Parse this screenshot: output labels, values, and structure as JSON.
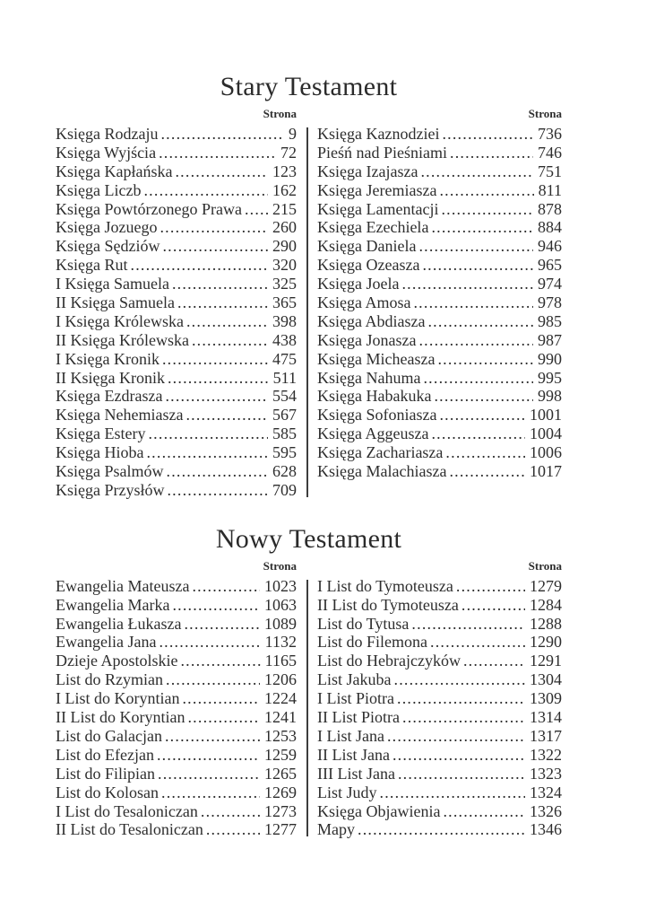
{
  "labels": {
    "column_header": "Strona"
  },
  "colors": {
    "text": "#2e2e2e",
    "divider": "#3d3d3d",
    "background": "#ffffff"
  },
  "sections": [
    {
      "id": "stary-testament",
      "title": "Stary Testament",
      "columns": {
        "left": [
          {
            "book": "Księga Rodzaju",
            "page": "9"
          },
          {
            "book": "Księga Wyjścia",
            "page": "72"
          },
          {
            "book": "Księga Kapłańska",
            "page": "123"
          },
          {
            "book": "Księga Liczb",
            "page": "162"
          },
          {
            "book": "Księga Powtórzonego Prawa",
            "page": "215"
          },
          {
            "book": "Księga Jozuego",
            "page": "260"
          },
          {
            "book": "Księga Sędziów",
            "page": "290"
          },
          {
            "book": "Księga Rut",
            "page": "320"
          },
          {
            "book": "I Księga Samuela",
            "page": "325"
          },
          {
            "book": "II Księga Samuela",
            "page": "365"
          },
          {
            "book": "I Księga Królewska",
            "page": "398"
          },
          {
            "book": "II Księga Królewska",
            "page": "438"
          },
          {
            "book": "I Księga Kronik",
            "page": "475"
          },
          {
            "book": "II Księga Kronik",
            "page": "511"
          },
          {
            "book": "Księga Ezdrasza",
            "page": "554"
          },
          {
            "book": "Księga Nehemiasza",
            "page": "567"
          },
          {
            "book": "Księga Estery",
            "page": "585"
          },
          {
            "book": "Księga Hioba",
            "page": "595"
          },
          {
            "book": "Księga Psalmów",
            "page": "628"
          },
          {
            "book": "Księga Przysłów",
            "page": "709"
          }
        ],
        "right": [
          {
            "book": "Księga Kaznodziei",
            "page": "736"
          },
          {
            "book": "Pieśń nad Pieśniami",
            "page": "746"
          },
          {
            "book": "Księga Izajasza",
            "page": "751"
          },
          {
            "book": "Księga Jeremiasza",
            "page": "811"
          },
          {
            "book": "Księga Lamentacji",
            "page": "878"
          },
          {
            "book": "Księga Ezechiela",
            "page": "884"
          },
          {
            "book": "Księga Daniela",
            "page": "946"
          },
          {
            "book": "Księga Ozeasza",
            "page": "965"
          },
          {
            "book": "Księga Joela",
            "page": "974"
          },
          {
            "book": "Księga Amosa",
            "page": "978"
          },
          {
            "book": "Księga Abdiasza",
            "page": "985"
          },
          {
            "book": "Księga Jonasza",
            "page": "987"
          },
          {
            "book": "Księga Micheasza",
            "page": "990"
          },
          {
            "book": "Księga Nahuma",
            "page": "995"
          },
          {
            "book": "Księga Habakuka",
            "page": "998"
          },
          {
            "book": "Księga Sofoniasza",
            "page": "1001"
          },
          {
            "book": "Księga Aggeusza",
            "page": "1004"
          },
          {
            "book": "Księga Zachariasza",
            "page": "1006"
          },
          {
            "book": "Księga Malachiasza",
            "page": "1017"
          }
        ]
      }
    },
    {
      "id": "nowy-testament",
      "title": "Nowy Testament",
      "columns": {
        "left": [
          {
            "book": "Ewangelia Mateusza",
            "page": "1023"
          },
          {
            "book": "Ewangelia Marka",
            "page": "1063"
          },
          {
            "book": "Ewangelia Łukasza",
            "page": "1089"
          },
          {
            "book": "Ewangelia Jana",
            "page": "1132"
          },
          {
            "book": "Dzieje Apostolskie",
            "page": "1165"
          },
          {
            "book": "List do Rzymian",
            "page": "1206"
          },
          {
            "book": "I List do Koryntian",
            "page": "1224"
          },
          {
            "book": "II List do Koryntian",
            "page": "1241"
          },
          {
            "book": "List do Galacjan",
            "page": "1253"
          },
          {
            "book": "List do Efezjan",
            "page": "1259"
          },
          {
            "book": "List do Filipian",
            "page": "1265"
          },
          {
            "book": "List do Kolosan",
            "page": "1269"
          },
          {
            "book": "I List do Tesaloniczan",
            "page": "1273"
          },
          {
            "book": "II List do Tesaloniczan",
            "page": "1277"
          }
        ],
        "right": [
          {
            "book": "I List do Tymoteusza",
            "page": "1279"
          },
          {
            "book": "II List do Tymoteusza",
            "page": "1284"
          },
          {
            "book": "List do Tytusa",
            "page": "1288"
          },
          {
            "book": "List do Filemona",
            "page": "1290"
          },
          {
            "book": "List do Hebrajczyków",
            "page": "1291"
          },
          {
            "book": "List Jakuba",
            "page": "1304"
          },
          {
            "book": "I List Piotra",
            "page": "1309"
          },
          {
            "book": "II List Piotra",
            "page": "1314"
          },
          {
            "book": "I List Jana",
            "page": "1317"
          },
          {
            "book": "II List Jana",
            "page": "1322"
          },
          {
            "book": "III List Jana",
            "page": "1323"
          },
          {
            "book": "List Judy",
            "page": "1324"
          },
          {
            "book": "Księga Objawienia",
            "page": "1326"
          },
          {
            "book": "Mapy",
            "page": "1346"
          }
        ]
      }
    }
  ]
}
